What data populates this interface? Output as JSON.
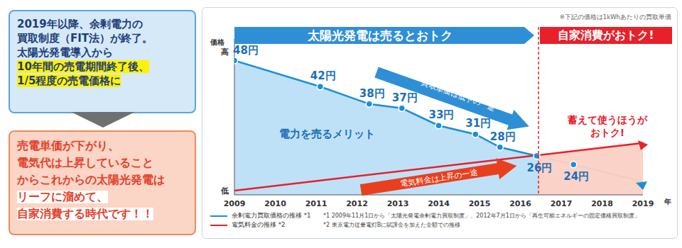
{
  "left_panel": {
    "box1": {
      "lines": [
        "2019年以降、余剰電力の",
        "買取制度（FIT法）が終了。",
        "太陽光発電導入から"
      ],
      "highlighted_lines": [
        "10年間の売電期間終了後、",
        "1/5程度の売電価格に"
      ]
    },
    "box2": {
      "lines": [
        "売電単価が下がり、",
        "電気代は上昇していること",
        "からこれからの太陽光発電は"
      ],
      "highlighted_lines": [
        "リーフに溜めて、",
        "自家消費する時代です！！"
      ]
    }
  },
  "chart_data": {
    "type": "line",
    "note": "※下記の価格は1kWhあたりの買取単価",
    "banners": [
      "太陽光発電は売るとおトク",
      "自家消費がおトク!"
    ],
    "annotations": {
      "price_falling": "買取単価は低下の一途",
      "bill_rising": "電気料金は上昇の一途",
      "sell_merit": "電力を売るメリット",
      "store_merit": [
        "蓄えて使うほうが",
        "おトク!"
      ]
    },
    "y_label": "価格",
    "x_label": "年",
    "series": [
      {
        "name": "余剰電力買取価格の推移 *1",
        "color": "#1b8fd8",
        "marker": "circle",
        "x": [
          2009,
          2011.1,
          2012.3,
          2013.1,
          2014.0,
          2014.9,
          2015.5,
          2016.4,
          2017.3,
          2019
        ],
        "values": [
          48,
          42,
          38,
          37,
          33,
          31,
          28,
          26,
          24,
          20
        ],
        "value_labels": [
          "48円",
          "42円",
          "38円",
          "37円",
          "33円",
          "31円",
          "28円",
          "26円",
          "24円",
          null
        ]
      },
      {
        "name": "電気料金の推移 *2",
        "color": "#e8202a",
        "x": [
          2009,
          2019
        ],
        "values": [
          18,
          29
        ]
      }
    ],
    "xlim": [
      2009,
      2019
    ],
    "xticks": [
      2009,
      2010,
      2011,
      2012,
      2013,
      2014,
      2015,
      2016,
      2017,
      2018,
      2019
    ],
    "ylim": [
      17,
      53
    ],
    "yticks": [
      {
        "value": 50,
        "label": "高"
      },
      {
        "value": 18,
        "label": "低"
      }
    ],
    "grid": false,
    "legend": "bottom",
    "data_labels": true,
    "footnotes": [
      "*1 2009年11月1日から「太陽光発電余剰電力買取制度」、2012年7月1日から「再生可能エネルギーの固定価格買取制度」",
      "*2 東京電力従量電灯Bに賦課金を加えた金額での推移"
    ]
  }
}
